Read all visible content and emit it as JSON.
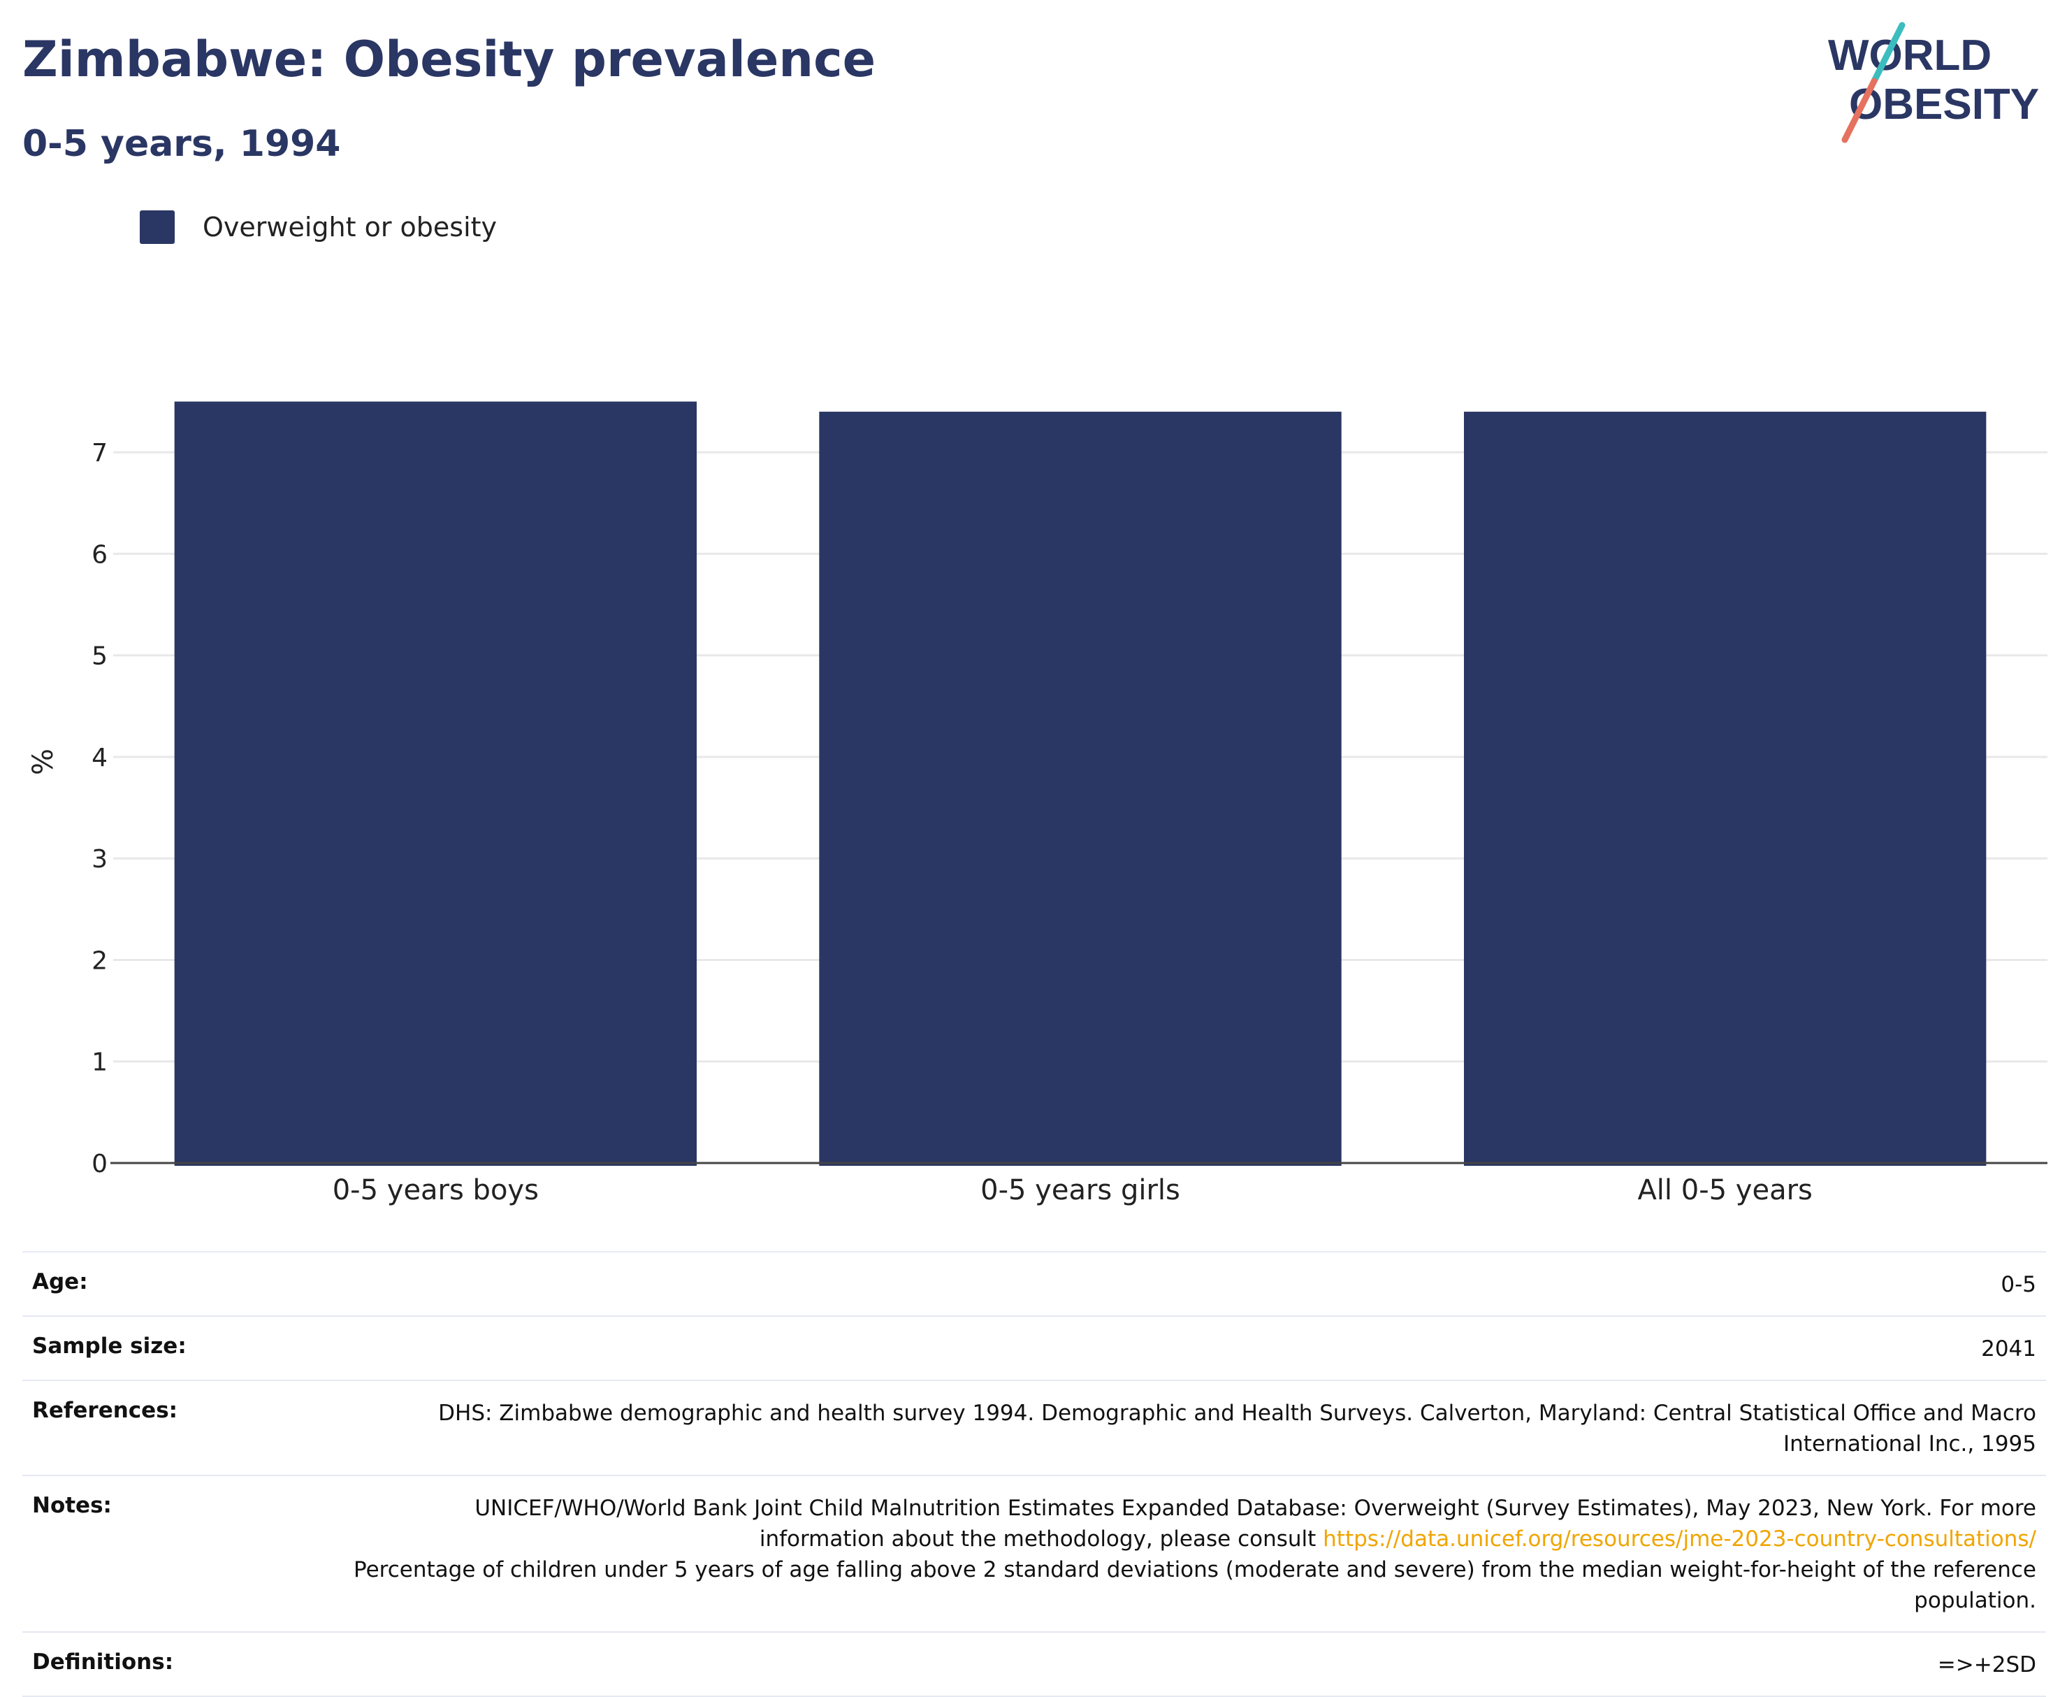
{
  "header": {
    "title": "Zimbabwe: Obesity prevalence",
    "subtitle": "0-5 years, 1994",
    "logo_line1": "WORLD",
    "logo_line2": "OBESITY"
  },
  "colors": {
    "bar": "#2a3663",
    "title": "#2a3663",
    "grid": "#e8e8e8",
    "link": "#f0a500",
    "logo_teal": "#3bbdbf",
    "logo_coral": "#e5725f"
  },
  "chart_data": {
    "type": "bar",
    "title": "Zimbabwe: Obesity prevalence",
    "subtitle": "0-5 years, 1994",
    "categories": [
      "0-5 years boys",
      "0-5 years girls",
      "All 0-5 years"
    ],
    "series": [
      {
        "name": "Overweight or obesity",
        "values": [
          7.5,
          7.4,
          7.4
        ]
      }
    ],
    "xlabel": "",
    "ylabel": "%",
    "ylim": [
      0,
      7.6
    ],
    "yticks": [
      0,
      1,
      2,
      3,
      4,
      5,
      6,
      7
    ],
    "grid": true,
    "legend_position": "top-left"
  },
  "info": {
    "age_label": "Age:",
    "age_value": "0-5",
    "sample_label": "Sample size:",
    "sample_value": "2041",
    "references_label": "References:",
    "references_value": "DHS: Zimbabwe demographic and health survey 1994. Demographic and Health Surveys. Calverton, Maryland: Central Statistical Office and Macro International Inc., 1995",
    "notes_label": "Notes:",
    "notes_text_1": "UNICEF/WHO/World Bank Joint Child Malnutrition Estimates Expanded Database: Overweight (Survey Estimates), May 2023, New York. For more information about the methodology, please consult ",
    "notes_link": "https://data.unicef.org/resources/jme-2023-country-consultations/",
    "notes_text_2": "Percentage of children under 5 years of age falling above 2 standard deviations (moderate and severe) from the median weight-for-height of the reference population.",
    "definitions_label": "Definitions:",
    "definitions_value": "=>+2SD"
  }
}
